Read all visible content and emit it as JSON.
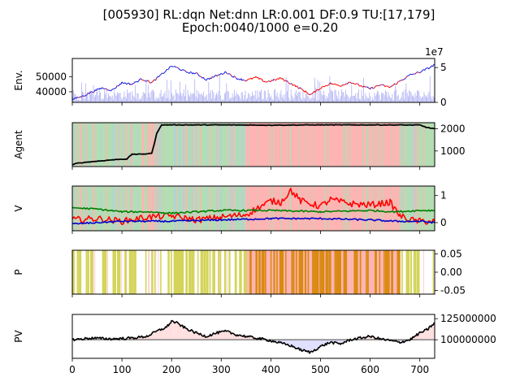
{
  "title_line1": "[005930] RL:dqn Net:dnn LR:0.001 DF:0.9 TU:[17,179]",
  "title_line2": "Epoch:0040/1000 e=0.20",
  "colors": {
    "buy_bg": "#ffb3b3",
    "sell_bg": "#b3ddb3",
    "hold_bg": "#b3c8f0",
    "close": "#1414e0",
    "buy_marker": "#ff0000",
    "volume": "#b0b0f5",
    "agent_line": "#000000",
    "v_buy": "#ff0000",
    "v_sell": "#0000cc",
    "v_hold": "#008000",
    "p_explore": "#d4d45a",
    "p_exploit": "#d98a10",
    "pv": "#000000",
    "pv_gain": "#ffdede",
    "pv_loss": "#dedeff",
    "pv_base": "#808080"
  },
  "chart_data": [
    {
      "type": "line",
      "panel": "env",
      "ylabel": "Env.",
      "xlim": [
        0,
        730
      ],
      "ylim": [
        33000,
        62000
      ],
      "yticks": [
        40000,
        50000
      ],
      "secondary_axis": {
        "offset_text": "1e7",
        "ylim": [
          0,
          6.3
        ],
        "ticks": [
          0,
          5
        ]
      },
      "series": [
        {
          "kind": "close",
          "x": [
            0,
            20,
            40,
            60,
            80,
            100,
            120,
            140,
            160,
            180,
            200,
            210,
            230,
            250,
            270,
            290,
            310,
            330,
            350,
            370,
            390,
            410,
            420,
            440,
            460,
            480,
            500,
            520,
            540,
            560,
            580,
            600,
            620,
            640,
            660,
            680,
            700,
            720,
            730
          ],
          "y": [
            35000,
            37000,
            40000,
            42500,
            41000,
            46000,
            45000,
            48500,
            46000,
            51500,
            57000,
            56000,
            53000,
            52000,
            48000,
            50500,
            53000,
            49000,
            47500,
            49500,
            46500,
            48000,
            49000,
            45500,
            42000,
            38000,
            42500,
            45500,
            44000,
            46500,
            44000,
            42000,
            44500,
            43000,
            47000,
            51000,
            53000,
            56000,
            58000
          ]
        },
        {
          "kind": "volume",
          "min": 0,
          "max": 4.5,
          "unit": "1e7"
        }
      ]
    },
    {
      "type": "line",
      "panel": "agent",
      "ylabel": "Agent",
      "xlim": [
        0,
        730
      ],
      "ylim": [
        300,
        2270
      ],
      "yticks": [
        1000,
        2000
      ],
      "background": "action",
      "x": [
        0,
        10,
        30,
        60,
        90,
        110,
        120,
        125,
        130,
        150,
        160,
        165,
        170,
        180,
        200,
        250,
        300,
        400,
        500,
        600,
        700,
        715,
        730
      ],
      "y": [
        380,
        450,
        500,
        560,
        620,
        640,
        850,
        860,
        850,
        870,
        900,
        1300,
        1800,
        2170,
        2170,
        2170,
        2170,
        2160,
        2170,
        2170,
        2165,
        2050,
        2000
      ]
    },
    {
      "type": "line",
      "panel": "V",
      "ylabel": "V",
      "xlim": [
        0,
        730
      ],
      "ylim": [
        -0.3,
        1.35
      ],
      "yticks": [
        0,
        1
      ],
      "background": "action",
      "series": [
        {
          "name": "buy",
          "x": [
            0,
            50,
            100,
            150,
            200,
            250,
            300,
            350,
            380,
            400,
            420,
            440,
            460,
            480,
            500,
            520,
            560,
            600,
            640,
            660,
            680,
            700,
            730
          ],
          "y": [
            0.1,
            0.15,
            0.05,
            0.2,
            0.25,
            0.1,
            0.2,
            0.3,
            0.6,
            0.8,
            0.75,
            1.2,
            0.8,
            0.7,
            0.6,
            0.85,
            0.7,
            0.65,
            0.75,
            0.25,
            0.1,
            0.05,
            0.05
          ]
        },
        {
          "name": "sell",
          "x": [
            0,
            100,
            200,
            300,
            400,
            500,
            600,
            650,
            700,
            730
          ],
          "y": [
            -0.05,
            0.05,
            0.05,
            0.1,
            0.15,
            0.15,
            0.1,
            0.05,
            0.05,
            0.0
          ]
        },
        {
          "name": "hold",
          "x": [
            0,
            50,
            100,
            150,
            200,
            250,
            300,
            400,
            500,
            600,
            650,
            700,
            730
          ],
          "y": [
            0.55,
            0.5,
            0.4,
            0.4,
            0.35,
            0.4,
            0.45,
            0.45,
            0.4,
            0.45,
            0.4,
            0.45,
            0.45
          ]
        }
      ]
    },
    {
      "type": "bar",
      "panel": "P",
      "ylabel": "P",
      "xlim": [
        0,
        730
      ],
      "ylim": [
        -0.06,
        0.06
      ],
      "yticks": [
        -0.05,
        0.0,
        0.05
      ],
      "ytick_labels": [
        "-0.05",
        "0.00",
        "0.05"
      ],
      "segments": [
        {
          "from": 0,
          "to": 350,
          "kind": "explore"
        },
        {
          "from": 350,
          "to": 660,
          "kind": "exploit"
        },
        {
          "from": 660,
          "to": 730,
          "kind": "explore"
        }
      ]
    },
    {
      "type": "line",
      "panel": "PV",
      "ylabel": "PV",
      "xlabel": "",
      "xlim": [
        0,
        730
      ],
      "xticks": [
        0,
        100,
        200,
        300,
        400,
        500,
        600,
        700
      ],
      "ylim": [
        78000000,
        130000000
      ],
      "yticks": [
        100000000,
        125000000
      ],
      "baseline": 100000000,
      "x": [
        0,
        40,
        80,
        120,
        150,
        170,
        190,
        200,
        210,
        230,
        250,
        270,
        290,
        310,
        330,
        350,
        380,
        400,
        420,
        440,
        460,
        480,
        500,
        520,
        540,
        560,
        580,
        600,
        620,
        640,
        660,
        680,
        700,
        715,
        730
      ],
      "y": [
        100000000,
        102000000,
        101000000,
        102000000,
        104000000,
        110000000,
        115000000,
        122000000,
        120000000,
        113000000,
        108000000,
        104000000,
        108000000,
        110000000,
        106000000,
        104000000,
        101000000,
        99000000,
        96000000,
        93000000,
        88000000,
        85000000,
        92000000,
        97000000,
        95000000,
        100000000,
        102000000,
        104000000,
        101000000,
        99000000,
        97000000,
        100000000,
        108000000,
        112000000,
        120000000
      ]
    }
  ]
}
